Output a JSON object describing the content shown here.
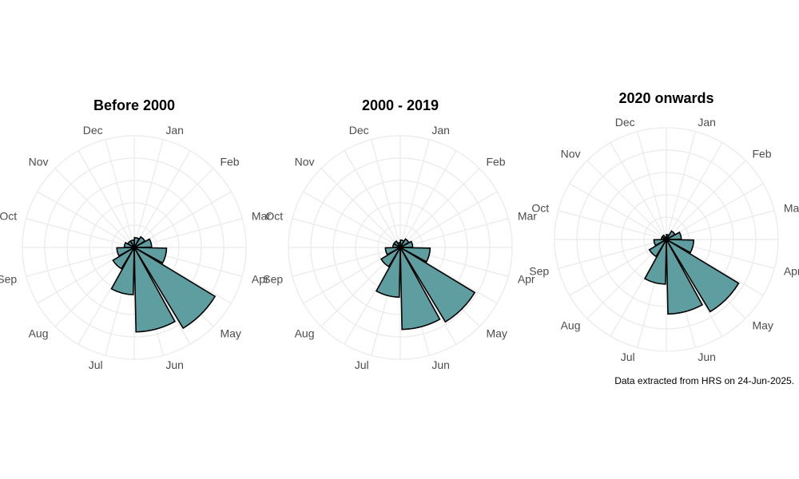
{
  "chart_data": [
    {
      "type": "polar-bar",
      "title": "Before 2000",
      "months": [
        "Jan",
        "Feb",
        "Mar",
        "Apr",
        "May",
        "Jun",
        "Jul",
        "Aug",
        "Sep",
        "Oct",
        "Nov",
        "Dec"
      ],
      "values": [
        0.4,
        0.5,
        0.7,
        1.3,
        3.8,
        3.4,
        1.9,
        1.0,
        0.7,
        0.4,
        0.3,
        0.3
      ],
      "ylim": [
        0,
        4.5
      ],
      "grid": true,
      "fill": "#5f9ea0"
    },
    {
      "type": "polar-bar",
      "title": "2000 - 2019",
      "months": [
        "Jan",
        "Feb",
        "Mar",
        "Apr",
        "May",
        "Jun",
        "Jul",
        "Aug",
        "Sep",
        "Oct",
        "Nov",
        "Dec"
      ],
      "values": [
        0.3,
        0.4,
        0.5,
        1.2,
        3.5,
        3.3,
        2.0,
        0.9,
        0.6,
        0.3,
        0.3,
        0.2
      ],
      "ylim": [
        0,
        4.5
      ],
      "grid": true,
      "fill": "#5f9ea0"
    },
    {
      "type": "polar-bar",
      "title": "2020 onwards",
      "months": [
        "Jan",
        "Feb",
        "Mar",
        "Apr",
        "May",
        "Jun",
        "Jul",
        "Aug",
        "Sep",
        "Oct",
        "Nov",
        "Dec"
      ],
      "values": [
        0.2,
        0.4,
        0.6,
        1.1,
        3.4,
        3.0,
        1.8,
        0.8,
        0.5,
        0.2,
        0.2,
        0.1
      ],
      "ylim": [
        0,
        4.5
      ],
      "grid": true,
      "fill": "#5f9ea0"
    }
  ],
  "caption": "Data extracted from HRS on 24-Jun-2025."
}
